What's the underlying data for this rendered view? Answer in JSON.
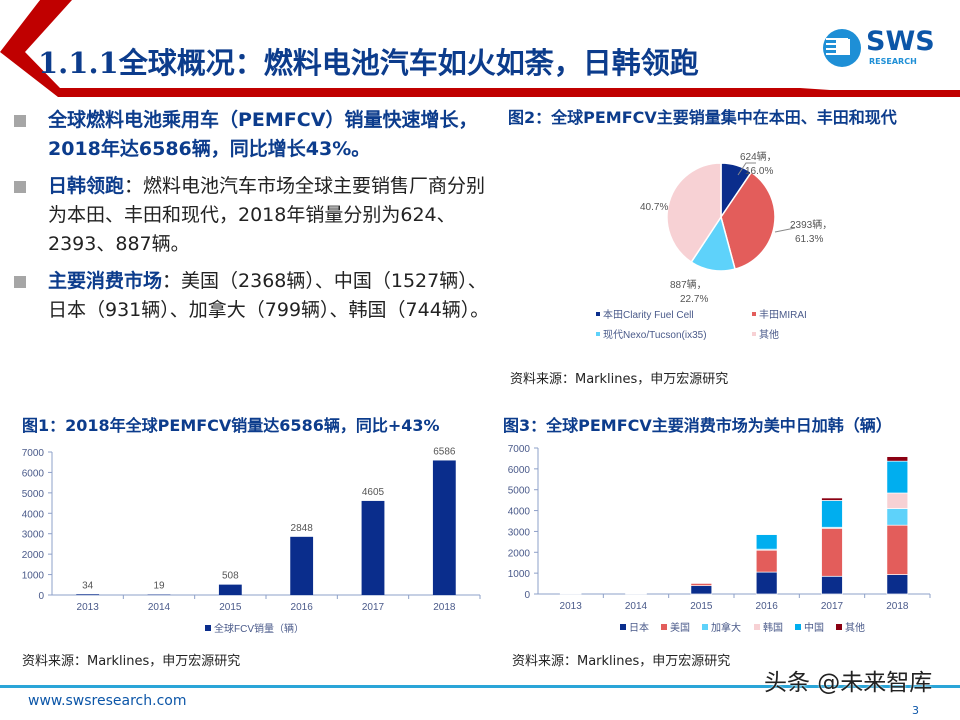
{
  "header": {
    "title": "1.1.1全球概况：燃料电池汽车如火如荼，日韩领跑",
    "logo": {
      "name": "SWS",
      "sub": "RESEARCH"
    },
    "colors": {
      "accent_red": "#c00000",
      "title_blue": "#0c3c8c"
    }
  },
  "bullets": [
    {
      "highlight": "全球燃料电池乘用车（PEMFCV）销量快速增长，2018年达6586辆，同比增长43%。",
      "text": ""
    },
    {
      "highlight": "日韩领跑",
      "text": "：燃料电池汽车市场全球主要销售厂商分别为本田、丰田和现代，2018年销量分别为624、2393、887辆。"
    },
    {
      "highlight": "主要消费市场",
      "text": "：美国（2368辆）、中国（1527辆）、日本（931辆）、加拿大（799辆）、韩国（744辆）。"
    }
  ],
  "figures": {
    "fig1": {
      "title": "图1：2018年全球PEMFCV销量达6586辆，同比+43%",
      "source": "资料来源：Marklines，申万宏源研究"
    },
    "fig2": {
      "title": "图2：全球PEMFCV主要销量集中在本田、丰田和现代",
      "source": "资料来源：Marklines，申万宏源研究"
    },
    "fig3": {
      "title": "图3：全球PEMFCV主要消费市场为美中日加韩（辆）",
      "source": "资料来源：Marklines，申万宏源研究"
    }
  },
  "footer": {
    "url": "www.swsresearch.com",
    "page": "3",
    "watermark": "头条 @未来智库"
  },
  "chart_data": [
    {
      "type": "bar",
      "categories": [
        "2013",
        "2014",
        "2015",
        "2016",
        "2017",
        "2018"
      ],
      "series": [
        {
          "name": "全球FCV销量（辆）",
          "values": [
            34,
            19,
            508,
            2848,
            4605,
            6586
          ],
          "color": "#0a2d8c"
        }
      ],
      "data_labels": [
        "34",
        "19",
        "508",
        "2848",
        "4605",
        "6586"
      ],
      "yticks": [
        "0",
        "1000",
        "2000",
        "3000",
        "4000",
        "5000",
        "6000",
        "7000"
      ],
      "ylim": [
        0,
        7000
      ],
      "legend": "bottom"
    },
    {
      "type": "pie",
      "slices": [
        {
          "name": "本田Clarity Fuel Cell",
          "value": 624,
          "label": "624辆，",
          "pct": "16.0%",
          "color": "#0a2d8c"
        },
        {
          "name": "丰田MIRAI",
          "value": 2393,
          "label": "2393辆，",
          "pct": "61.3%",
          "color": "#e35d5b"
        },
        {
          "name": "现代Nexo/Tucson(ix35)",
          "value": 887,
          "label": "887辆，",
          "pct": "22.7%",
          "color": "#5ed2fa"
        },
        {
          "name": "其他",
          "value": 2682,
          "label": "",
          "pct": "40.7%",
          "color": "#f7d1d4"
        }
      ],
      "legend": "bottom"
    },
    {
      "type": "bar",
      "stacked": true,
      "categories": [
        "2013",
        "2014",
        "2015",
        "2016",
        "2017",
        "2018"
      ],
      "series": [
        {
          "name": "日本",
          "values": [
            0,
            0,
            400,
            1050,
            850,
            931
          ],
          "color": "#0a2d8c"
        },
        {
          "name": "美国",
          "values": [
            0,
            0,
            108,
            1050,
            2300,
            2368
          ],
          "color": "#e35d5b"
        },
        {
          "name": "加拿大",
          "values": [
            0,
            0,
            0,
            50,
            50,
            799
          ],
          "color": "#5ed2fa"
        },
        {
          "name": "韩国",
          "values": [
            0,
            0,
            0,
            0,
            0,
            744
          ],
          "color": "#f7d1d4"
        },
        {
          "name": "中国",
          "values": [
            34,
            19,
            0,
            698,
            1285,
            1527
          ],
          "color": "#00aeef"
        },
        {
          "name": "其他",
          "values": [
            0,
            0,
            0,
            0,
            120,
            217
          ],
          "color": "#8b0012"
        }
      ],
      "yticks": [
        "0",
        "1000",
        "2000",
        "3000",
        "4000",
        "5000",
        "6000",
        "7000"
      ],
      "ylim": [
        0,
        7000
      ],
      "legend": "bottom"
    }
  ]
}
